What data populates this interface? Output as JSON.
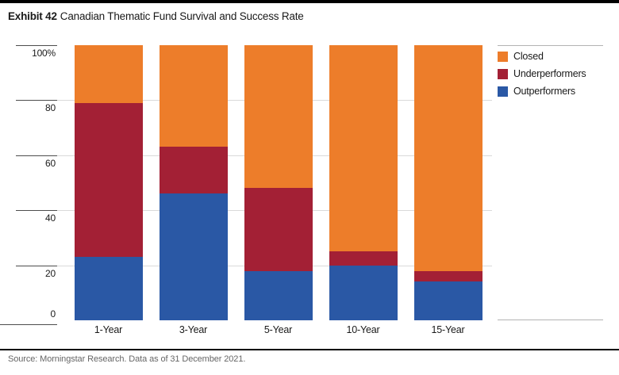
{
  "header": {
    "exhibit": "Exhibit 42",
    "title": "Canadian Thematic Fund Survival and Success Rate"
  },
  "footer": {
    "source": "Source: Morningstar Research. Data as of 31 December 2021."
  },
  "colors": {
    "closed": "#ED7D2A",
    "underperformers": "#A32035",
    "outperformers": "#2A58A5",
    "gridline": "#D9D9D9",
    "tick_line": "#4D4D4D",
    "top_bar": "#000000"
  },
  "chart_data": {
    "type": "bar",
    "stacked": true,
    "stack_total": 100,
    "title": "Canadian Thematic Fund Survival and Success Rate",
    "categories": [
      "1-Year",
      "3-Year",
      "5-Year",
      "10-Year",
      "15-Year"
    ],
    "series": [
      {
        "name": "Closed",
        "color": "#ED7D2A",
        "values": [
          21,
          37,
          52,
          75,
          82
        ]
      },
      {
        "name": "Underperformers",
        "color": "#A32035",
        "values": [
          56,
          17,
          30,
          5,
          4
        ]
      },
      {
        "name": "Outperformers",
        "color": "#2A58A5",
        "values": [
          23,
          46,
          18,
          20,
          14
        ]
      }
    ],
    "xlabel": "",
    "ylabel": "",
    "ylim": [
      0,
      100
    ],
    "y_ticks": [
      {
        "value": 100,
        "label": "100%"
      },
      {
        "value": 80,
        "label": "80"
      },
      {
        "value": 60,
        "label": "60"
      },
      {
        "value": 40,
        "label": "40"
      },
      {
        "value": 20,
        "label": "20"
      },
      {
        "value": 0,
        "label": "0"
      }
    ],
    "grid_values": [
      80,
      60,
      40,
      20
    ],
    "legend_position": "right",
    "legend_entries": [
      "Closed",
      "Underperformers",
      "Outperformers"
    ]
  }
}
